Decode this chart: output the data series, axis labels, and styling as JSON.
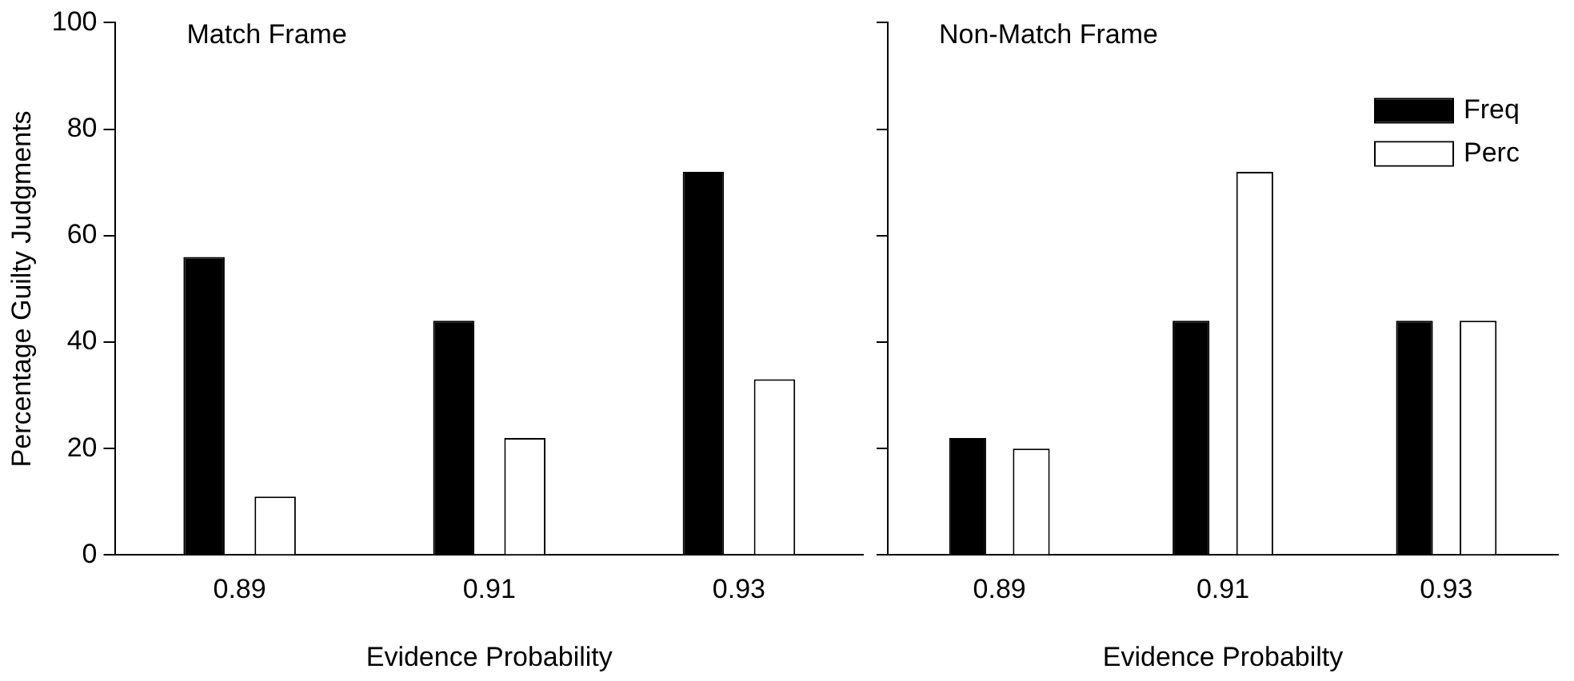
{
  "chart_data": [
    {
      "type": "bar",
      "title": "Match Frame",
      "xlabel": "Evidence Probability",
      "ylabel": "Percentage Guilty Judgments",
      "categories": [
        "0.89",
        "0.91",
        "0.93"
      ],
      "series": [
        {
          "color": "#000000",
          "values": [
            56,
            44,
            72
          ]
        },
        {
          "color": "#ffffff",
          "values": [
            11,
            22,
            33
          ]
        }
      ],
      "ylim": [
        0,
        100
      ],
      "yticks": [
        0,
        20,
        40,
        60,
        80,
        100
      ],
      "grid": false,
      "legend": false
    },
    {
      "type": "bar",
      "title": "Non-Match Frame",
      "xlabel": "Evidence Probabilty",
      "categories": [
        "0.89",
        "0.91",
        "0.93"
      ],
      "series": [
        {
          "name": "Freq",
          "color": "#000000",
          "values": [
            22,
            44,
            44
          ]
        },
        {
          "name": "Perc",
          "color": "#ffffff",
          "values": [
            20,
            72,
            44
          ]
        }
      ],
      "ylim": [
        0,
        100
      ],
      "yticks": [
        0,
        20,
        40,
        60,
        80,
        100
      ],
      "grid": false,
      "legend": "top right",
      "tick_labels": "x"
    }
  ]
}
